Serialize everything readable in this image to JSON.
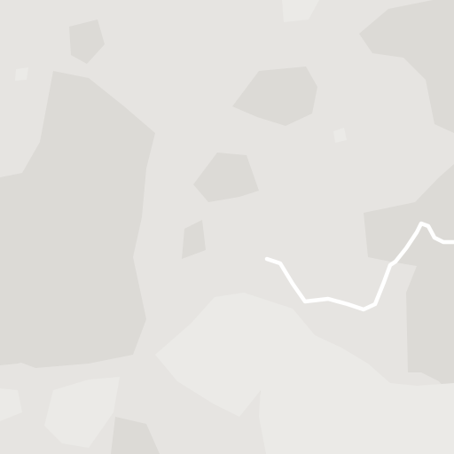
{
  "map": {
    "view": "terrain",
    "land_color": "#e6e4e1",
    "shade_color": "#dcdad6",
    "light_color": "#ebeae7",
    "road_color": "#ffffff",
    "labels": []
  }
}
